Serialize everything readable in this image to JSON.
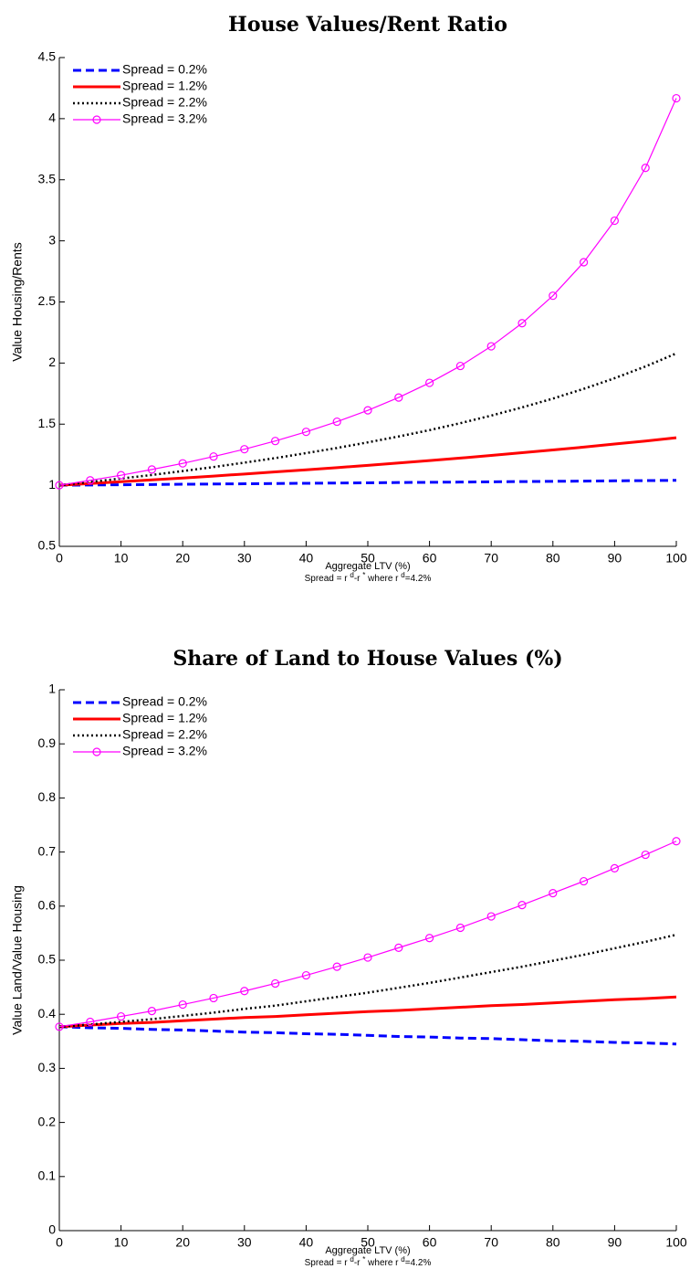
{
  "chart_data": [
    {
      "type": "line",
      "title": "House Values/Rent Ratio",
      "xlabel": "Aggregate LTV (%)",
      "note_parts": [
        "Spread = r ",
        "d",
        "-r ",
        "*",
        " where r ",
        "d",
        "=4.2%"
      ],
      "ylabel": "Value Housing/Rents",
      "x": [
        0,
        5,
        10,
        15,
        20,
        25,
        30,
        35,
        40,
        45,
        50,
        55,
        60,
        65,
        70,
        75,
        80,
        85,
        90,
        95,
        100
      ],
      "series": [
        {
          "name": "Spread = 0.2%",
          "color": "#0000ff",
          "linestyle": "dashed",
          "values": [
            1.0,
            1.002,
            1.004,
            1.006,
            1.008,
            1.01,
            1.012,
            1.014,
            1.016,
            1.018,
            1.02,
            1.022,
            1.024,
            1.026,
            1.028,
            1.03,
            1.032,
            1.034,
            1.036,
            1.038,
            1.04
          ]
        },
        {
          "name": "Spread = 1.2%",
          "color": "#ff0000",
          "linestyle": "solid",
          "values": [
            1.0,
            1.014,
            1.029,
            1.044,
            1.059,
            1.075,
            1.092,
            1.109,
            1.126,
            1.144,
            1.163,
            1.182,
            1.202,
            1.222,
            1.244,
            1.266,
            1.289,
            1.312,
            1.337,
            1.362,
            1.389
          ]
        },
        {
          "name": "Spread = 2.2%",
          "color": "#000000",
          "linestyle": "dotted",
          "values": [
            1.0,
            1.027,
            1.055,
            1.084,
            1.116,
            1.149,
            1.185,
            1.222,
            1.263,
            1.305,
            1.351,
            1.399,
            1.451,
            1.508,
            1.57,
            1.637,
            1.709,
            1.789,
            1.876,
            1.972,
            2.079
          ]
        },
        {
          "name": "Spread = 3.2%",
          "color": "#ff00ff",
          "linestyle": "solid",
          "marker": "circle",
          "values": [
            1.0,
            1.04,
            1.082,
            1.129,
            1.179,
            1.235,
            1.295,
            1.362,
            1.437,
            1.52,
            1.613,
            1.718,
            1.838,
            1.976,
            2.137,
            2.326,
            2.551,
            2.825,
            3.165,
            3.597,
            4.167
          ]
        }
      ],
      "xlim": [
        0,
        100
      ],
      "xticks": [
        0,
        10,
        20,
        30,
        40,
        50,
        60,
        70,
        80,
        90,
        100
      ],
      "ylim": [
        0.5,
        4.5
      ],
      "yticks": [
        0.5,
        1,
        1.5,
        2,
        2.5,
        3,
        3.5,
        4,
        4.5
      ],
      "legend": "upper-left",
      "grid": false
    },
    {
      "type": "line",
      "title": "Share of Land to House Values (%)",
      "xlabel": "Aggregate LTV (%)",
      "note_parts": [
        "Spread = r ",
        "d",
        "-r ",
        "*",
        " where r ",
        "d",
        "=4.2%"
      ],
      "ylabel": "Value Land/Value Housing",
      "x": [
        0,
        5,
        10,
        15,
        20,
        25,
        30,
        35,
        40,
        45,
        50,
        55,
        60,
        65,
        70,
        75,
        80,
        85,
        90,
        95,
        100
      ],
      "series": [
        {
          "name": "Spread = 0.2%",
          "color": "#0000ff",
          "linestyle": "dashed",
          "values": [
            0.377,
            0.375,
            0.374,
            0.372,
            0.371,
            0.369,
            0.367,
            0.366,
            0.364,
            0.363,
            0.361,
            0.359,
            0.358,
            0.356,
            0.355,
            0.353,
            0.351,
            0.35,
            0.348,
            0.347,
            0.345
          ]
        },
        {
          "name": "Spread = 1.2%",
          "color": "#ff0000",
          "linestyle": "solid",
          "values": [
            0.377,
            0.38,
            0.383,
            0.385,
            0.388,
            0.391,
            0.394,
            0.396,
            0.399,
            0.402,
            0.405,
            0.407,
            0.41,
            0.413,
            0.416,
            0.418,
            0.421,
            0.424,
            0.427,
            0.429,
            0.432
          ]
        },
        {
          "name": "Spread = 2.2%",
          "color": "#000000",
          "linestyle": "dotted",
          "values": [
            0.377,
            0.381,
            0.386,
            0.391,
            0.397,
            0.403,
            0.41,
            0.416,
            0.424,
            0.432,
            0.44,
            0.449,
            0.458,
            0.468,
            0.478,
            0.488,
            0.499,
            0.51,
            0.522,
            0.534,
            0.547
          ]
        },
        {
          "name": "Spread = 3.2%",
          "color": "#ff00ff",
          "linestyle": "solid",
          "marker": "circle",
          "values": [
            0.377,
            0.386,
            0.396,
            0.406,
            0.418,
            0.43,
            0.443,
            0.457,
            0.472,
            0.488,
            0.505,
            0.523,
            0.541,
            0.56,
            0.581,
            0.602,
            0.624,
            0.646,
            0.67,
            0.695,
            0.72
          ]
        }
      ],
      "xlim": [
        0,
        100
      ],
      "xticks": [
        0,
        10,
        20,
        30,
        40,
        50,
        60,
        70,
        80,
        90,
        100
      ],
      "ylim": [
        0,
        1
      ],
      "yticks": [
        0,
        0.1,
        0.2,
        0.3,
        0.4,
        0.5,
        0.6,
        0.7,
        0.8,
        0.9,
        1
      ],
      "legend": "upper-left",
      "grid": false
    }
  ]
}
